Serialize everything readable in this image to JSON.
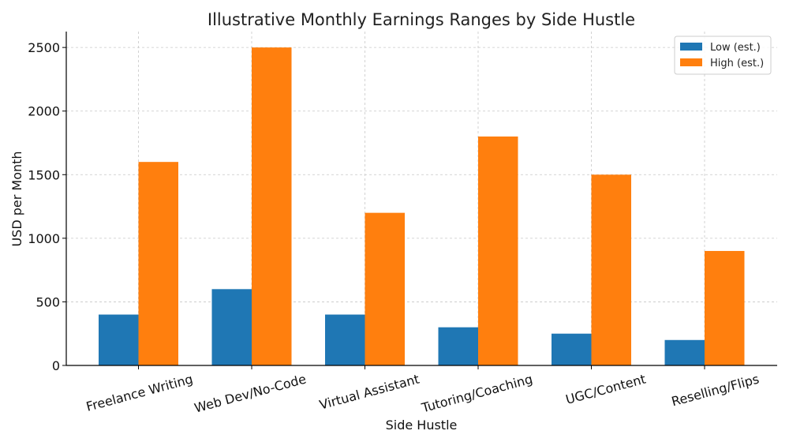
{
  "chart_data": {
    "type": "bar",
    "title": "Illustrative Monthly Earnings Ranges by Side Hustle",
    "xlabel": "Side Hustle",
    "ylabel": "USD per Month",
    "categories": [
      "Freelance Writing",
      "Web Dev/No-Code",
      "Virtual Assistant",
      "Tutoring/Coaching",
      "UGC/Content",
      "Reselling/Flips"
    ],
    "series": [
      {
        "name": "Low (est.)",
        "color": "#1f77b4",
        "values": [
          400,
          600,
          400,
          300,
          250,
          200
        ]
      },
      {
        "name": "High (est.)",
        "color": "#ff7f0e",
        "values": [
          1600,
          2500,
          1200,
          1800,
          1500,
          900
        ]
      }
    ],
    "ylim": [
      0,
      2625
    ],
    "yticks": [
      0,
      500,
      1000,
      1500,
      2000,
      2500
    ],
    "grid": true,
    "legend_position": "top-right"
  }
}
